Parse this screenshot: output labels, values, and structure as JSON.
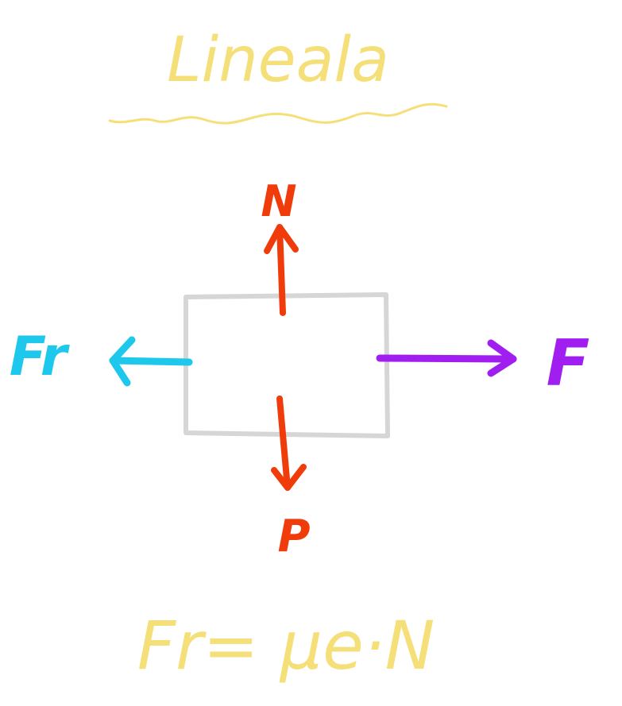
{
  "title": "Lineala",
  "forces": {
    "normal": "N",
    "weight": "P",
    "friction": "Fr",
    "applied": "F"
  },
  "formula": "Fr= μe·N",
  "colors": {
    "title": "#f5df78",
    "formula": "#f5df78",
    "box": "#d6d6d6",
    "normal": "#f03c0a",
    "weight": "#f03c0a",
    "friction": "#1ec8ec",
    "applied": "#a01ef0"
  }
}
